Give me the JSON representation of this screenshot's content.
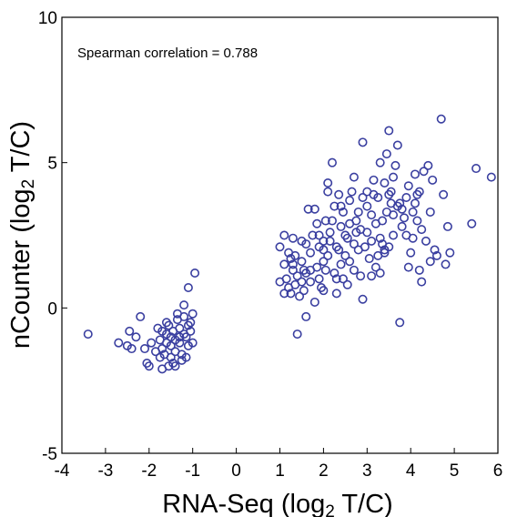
{
  "chart_data": {
    "type": "scatter",
    "title": "",
    "annotation": "Spearman correlation = 0.788",
    "xlabel_main": "RNA-Seq (log",
    "xlabel_sub": "2",
    "xlabel_end": " T/C)",
    "ylabel_main": "nCounter (log",
    "ylabel_sub": "2",
    "ylabel_end": " T/C)",
    "xlim": [
      -4,
      6
    ],
    "ylim": [
      -5,
      10
    ],
    "xticks": [
      "-4",
      "-3",
      "-2",
      "-1",
      "0",
      "1",
      "2",
      "3",
      "4",
      "5",
      "6"
    ],
    "yticks": [
      "-5",
      "0",
      "5",
      "10"
    ],
    "grid": false,
    "marker_color": "#3a3fa0",
    "series": [
      {
        "points": [
          [
            -3.4,
            -0.9
          ],
          [
            -2.7,
            -1.2
          ],
          [
            -2.5,
            -1.3
          ],
          [
            -2.45,
            -0.8
          ],
          [
            -2.4,
            -1.4
          ],
          [
            -2.3,
            -1.0
          ],
          [
            -2.2,
            -0.3
          ],
          [
            -2.1,
            -1.4
          ],
          [
            -2.05,
            -1.9
          ],
          [
            -2.0,
            -2.0
          ],
          [
            -1.95,
            -1.2
          ],
          [
            -1.8,
            -0.7
          ],
          [
            -1.75,
            -1.1
          ],
          [
            -1.7,
            -1.4
          ],
          [
            -1.7,
            -2.1
          ],
          [
            -1.65,
            -1.6
          ],
          [
            -1.6,
            -0.5
          ],
          [
            -1.6,
            -0.9
          ],
          [
            -1.55,
            -2.0
          ],
          [
            -1.5,
            -1.3
          ],
          [
            -1.5,
            -1.7
          ],
          [
            -1.45,
            -0.8
          ],
          [
            -1.4,
            -1.1
          ],
          [
            -1.4,
            -1.5
          ],
          [
            -1.4,
            -2.0
          ],
          [
            -1.35,
            -0.4
          ],
          [
            -1.3,
            -0.7
          ],
          [
            -1.3,
            -1.2
          ],
          [
            -1.25,
            -1.8
          ],
          [
            -1.2,
            -0.9
          ],
          [
            -1.2,
            -0.3
          ],
          [
            -1.2,
            0.1
          ],
          [
            -1.15,
            -1.0
          ],
          [
            -1.1,
            -1.3
          ],
          [
            -1.1,
            -0.6
          ],
          [
            -1.05,
            -0.5
          ],
          [
            -1.0,
            -1.2
          ],
          [
            -1.0,
            -0.2
          ],
          [
            -0.95,
            1.2
          ],
          [
            -1.1,
            0.7
          ],
          [
            -1.25,
            -1.6
          ],
          [
            -1.55,
            -0.6
          ],
          [
            -1.75,
            -1.7
          ],
          [
            -1.3,
            -1.0
          ],
          [
            -1.45,
            -1.9
          ],
          [
            -1.6,
            -1.2
          ],
          [
            -1.35,
            -0.2
          ],
          [
            -1.05,
            -0.8
          ],
          [
            -1.15,
            -1.7
          ],
          [
            -1.5,
            -1.0
          ],
          [
            -1.7,
            -0.8
          ],
          [
            -1.85,
            -1.5
          ],
          [
            1.0,
            0.9
          ],
          [
            1.0,
            2.1
          ],
          [
            1.1,
            2.5
          ],
          [
            1.1,
            1.5
          ],
          [
            1.1,
            0.5
          ],
          [
            1.15,
            1.0
          ],
          [
            1.2,
            0.7
          ],
          [
            1.25,
            1.7
          ],
          [
            1.3,
            1.3
          ],
          [
            1.3,
            2.4
          ],
          [
            1.35,
            0.8
          ],
          [
            1.4,
            1.1
          ],
          [
            1.4,
            -0.9
          ],
          [
            1.5,
            0.9
          ],
          [
            1.5,
            1.6
          ],
          [
            1.5,
            2.3
          ],
          [
            1.55,
            0.6
          ],
          [
            1.6,
            1.2
          ],
          [
            1.6,
            -0.3
          ],
          [
            1.65,
            3.4
          ],
          [
            1.7,
            1.3
          ],
          [
            1.7,
            1.9
          ],
          [
            1.75,
            2.5
          ],
          [
            1.8,
            0.2
          ],
          [
            1.8,
            3.4
          ],
          [
            1.85,
            1.4
          ],
          [
            1.9,
            2.1
          ],
          [
            1.9,
            2.5
          ],
          [
            1.95,
            0.7
          ],
          [
            2.0,
            1.6
          ],
          [
            2.0,
            2.0
          ],
          [
            2.05,
            3.0
          ],
          [
            2.1,
            1.8
          ],
          [
            2.1,
            4.0
          ],
          [
            2.1,
            4.3
          ],
          [
            2.15,
            2.3
          ],
          [
            2.2,
            5.0
          ],
          [
            2.2,
            3.0
          ],
          [
            2.25,
            1.2
          ],
          [
            2.3,
            1.0
          ],
          [
            2.3,
            2.1
          ],
          [
            2.3,
            0.5
          ],
          [
            2.35,
            3.9
          ],
          [
            2.4,
            2.8
          ],
          [
            2.4,
            1.5
          ],
          [
            2.45,
            3.3
          ],
          [
            2.5,
            2.5
          ],
          [
            2.5,
            1.8
          ],
          [
            2.55,
            0.8
          ],
          [
            2.6,
            2.9
          ],
          [
            2.6,
            3.7
          ],
          [
            2.65,
            4.0
          ],
          [
            2.7,
            2.2
          ],
          [
            2.7,
            1.3
          ],
          [
            2.75,
            2.6
          ],
          [
            2.8,
            3.3
          ],
          [
            2.8,
            2.0
          ],
          [
            2.85,
            1.1
          ],
          [
            2.9,
            5.7
          ],
          [
            2.9,
            0.3
          ],
          [
            3.0,
            4.0
          ],
          [
            3.0,
            2.6
          ],
          [
            3.0,
            3.5
          ],
          [
            3.05,
            1.7
          ],
          [
            3.1,
            2.3
          ],
          [
            3.1,
            3.2
          ],
          [
            3.15,
            4.4
          ],
          [
            3.2,
            2.9
          ],
          [
            3.2,
            1.4
          ],
          [
            3.25,
            3.8
          ],
          [
            3.3,
            2.4
          ],
          [
            3.3,
            5.0
          ],
          [
            3.35,
            3.0
          ],
          [
            3.4,
            4.3
          ],
          [
            3.4,
            1.9
          ],
          [
            3.45,
            5.3
          ],
          [
            3.5,
            6.1
          ],
          [
            3.5,
            3.9
          ],
          [
            3.5,
            2.1
          ],
          [
            3.55,
            3.6
          ],
          [
            3.6,
            4.5
          ],
          [
            3.6,
            3.2
          ],
          [
            3.65,
            4.9
          ],
          [
            3.7,
            3.5
          ],
          [
            3.7,
            5.6
          ],
          [
            3.75,
            -0.5
          ],
          [
            3.8,
            2.8
          ],
          [
            3.9,
            3.8
          ],
          [
            3.95,
            4.2
          ],
          [
            4.0,
            1.9
          ],
          [
            4.05,
            2.4
          ],
          [
            4.1,
            3.6
          ],
          [
            4.1,
            4.6
          ],
          [
            4.15,
            3.0
          ],
          [
            4.2,
            1.3
          ],
          [
            4.2,
            4.0
          ],
          [
            4.25,
            2.7
          ],
          [
            4.3,
            4.7
          ],
          [
            4.35,
            2.3
          ],
          [
            4.4,
            4.9
          ],
          [
            4.45,
            3.3
          ],
          [
            4.5,
            4.4
          ],
          [
            4.55,
            2.0
          ],
          [
            4.6,
            1.8
          ],
          [
            4.7,
            6.5
          ],
          [
            4.75,
            3.9
          ],
          [
            4.8,
            1.5
          ],
          [
            4.85,
            2.8
          ],
          [
            4.9,
            1.9
          ],
          [
            5.4,
            2.9
          ],
          [
            5.5,
            4.8
          ],
          [
            5.85,
            4.5
          ],
          [
            1.2,
            1.9
          ],
          [
            1.35,
            1.8
          ],
          [
            1.6,
            2.2
          ],
          [
            1.9,
            1.0
          ],
          [
            2.05,
            1.3
          ],
          [
            2.15,
            2.6
          ],
          [
            2.35,
            2.0
          ],
          [
            2.45,
            1.0
          ],
          [
            2.6,
            1.6
          ],
          [
            2.75,
            3.0
          ],
          [
            2.95,
            2.1
          ],
          [
            3.1,
            1.1
          ],
          [
            3.25,
            1.8
          ],
          [
            3.4,
            2.0
          ],
          [
            3.55,
            4.0
          ],
          [
            3.6,
            2.5
          ],
          [
            3.8,
            3.4
          ],
          [
            3.9,
            2.5
          ],
          [
            4.05,
            3.3
          ],
          [
            1.7,
            0.9
          ],
          [
            1.45,
            0.4
          ],
          [
            1.25,
            0.5
          ],
          [
            2.0,
            0.6
          ],
          [
            2.55,
            2.4
          ],
          [
            2.85,
            2.7
          ],
          [
            3.15,
            3.9
          ],
          [
            3.3,
            1.2
          ],
          [
            3.95,
            1.4
          ],
          [
            4.25,
            0.9
          ],
          [
            2.25,
            3.5
          ],
          [
            1.55,
            1.3
          ],
          [
            1.85,
            2.9
          ],
          [
            2.7,
            4.5
          ],
          [
            3.35,
            2.2
          ],
          [
            3.75,
            3.6
          ],
          [
            4.15,
            3.9
          ],
          [
            4.45,
            1.6
          ],
          [
            1.3,
            1.5
          ],
          [
            2.0,
            2.3
          ],
          [
            2.4,
            3.5
          ],
          [
            2.9,
            3.8
          ],
          [
            3.45,
            3.3
          ],
          [
            3.85,
            3.1
          ]
        ]
      }
    ]
  }
}
